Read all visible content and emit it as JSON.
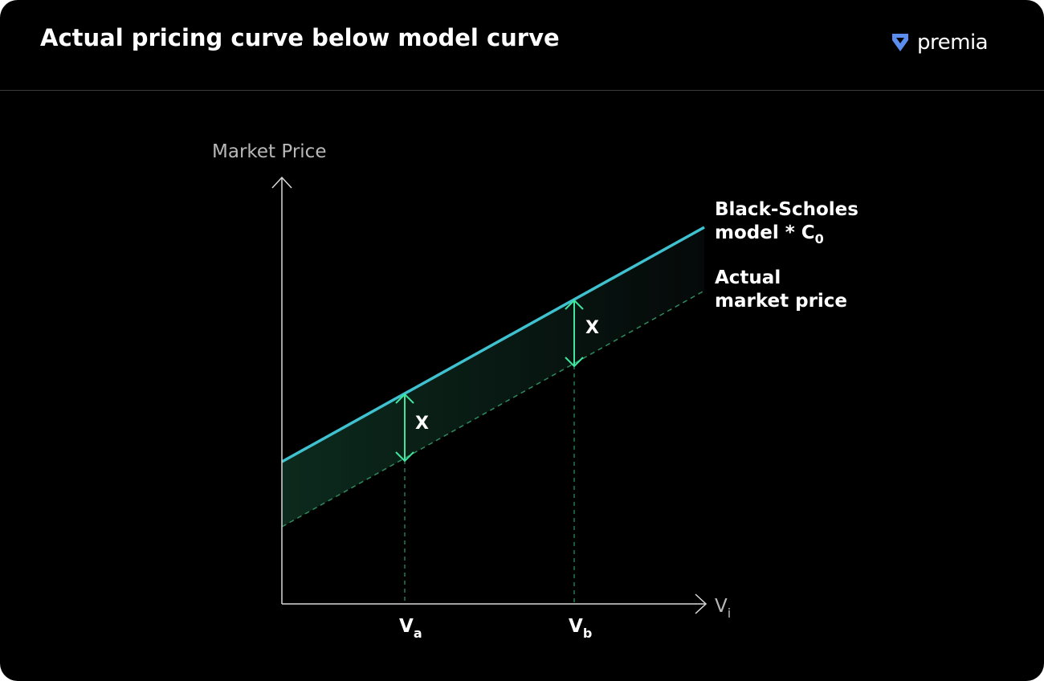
{
  "header": {
    "title": "Actual pricing curve below model curve",
    "brand": "premia"
  },
  "diagram": {
    "y_axis_label": "Market Price",
    "x_axis_label_main": "V",
    "x_axis_label_sub": "i",
    "model_curve_label_line1": "Black-Scholes",
    "model_curve_label_line2": "model * C",
    "model_curve_label_sub": "0",
    "actual_curve_label_line1": "Actual",
    "actual_curve_label_line2": "market price",
    "gap_label_a": "X",
    "gap_label_b": "X",
    "tick_a_main": "V",
    "tick_a_sub": "a",
    "tick_b_main": "V",
    "tick_b_sub": "b"
  },
  "colors": {
    "model_curve": "#3fc1cf",
    "actual_curve": "#2f8a5e",
    "gap_arrow": "#3ee6a0",
    "axis": "#d8d8d8",
    "brand_icon": "#5b8def"
  }
}
